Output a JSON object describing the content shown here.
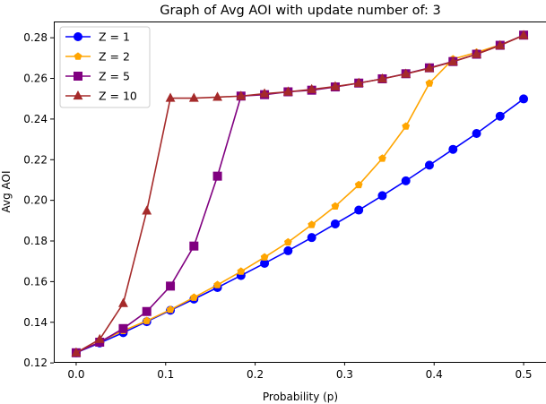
{
  "chart_data": {
    "type": "line",
    "title": "Graph of Avg AOI with update number of: 3",
    "xlabel": "Probability (p)",
    "ylabel": "Avg AOI",
    "xlim": [
      -0.025,
      0.525
    ],
    "ylim": [
      0.1205,
      0.288
    ],
    "xticks": [
      0.0,
      0.1,
      0.2,
      0.3,
      0.4,
      0.5
    ],
    "xtick_labels": [
      "0.0",
      "0.1",
      "0.2",
      "0.3",
      "0.4",
      "0.5"
    ],
    "yticks": [
      0.12,
      0.14,
      0.16,
      0.18,
      0.2,
      0.22,
      0.24,
      0.26,
      0.28
    ],
    "ytick_labels": [
      "0.12",
      "0.14",
      "0.16",
      "0.18",
      "0.20",
      "0.22",
      "0.24",
      "0.26",
      "0.28"
    ],
    "grid": false,
    "legend_position": "top-left",
    "x": [
      0.0,
      0.0263,
      0.0526,
      0.0789,
      0.1053,
      0.1316,
      0.1579,
      0.1842,
      0.2105,
      0.2368,
      0.2632,
      0.2895,
      0.3158,
      0.3421,
      0.3684,
      0.3947,
      0.4211,
      0.4474,
      0.4737,
      0.5
    ],
    "series": [
      {
        "name": "Z = 1",
        "color": "#0000ff",
        "marker": "circle",
        "values": [
          0.125,
          0.1298,
          0.1349,
          0.1403,
          0.1459,
          0.1514,
          0.1571,
          0.163,
          0.169,
          0.1752,
          0.1817,
          0.1884,
          0.1952,
          0.2023,
          0.2096,
          0.2173,
          0.2251,
          0.2329,
          0.2414,
          0.2499
        ]
      },
      {
        "name": "Z = 2",
        "color": "#ffa500",
        "marker": "pentagon",
        "values": [
          0.125,
          0.1304,
          0.1358,
          0.1407,
          0.1462,
          0.1522,
          0.1584,
          0.165,
          0.172,
          0.1794,
          0.188,
          0.1971,
          0.2076,
          0.2206,
          0.2364,
          0.2576,
          0.2695,
          0.2728,
          0.2765,
          0.2812
        ]
      },
      {
        "name": "Z = 5",
        "color": "#800080",
        "marker": "square",
        "values": [
          0.125,
          0.1302,
          0.1369,
          0.1453,
          0.1578,
          0.1775,
          0.2119,
          0.2513,
          0.252,
          0.2534,
          0.2542,
          0.2558,
          0.2577,
          0.2598,
          0.2623,
          0.2652,
          0.2683,
          0.2719,
          0.2763,
          0.2813
        ]
      },
      {
        "name": "Z = 10",
        "color": "#a52a2a",
        "marker": "triangle",
        "values": [
          0.125,
          0.1316,
          0.1493,
          0.1948,
          0.2503,
          0.2503,
          0.2508,
          0.2513,
          0.2525,
          0.2534,
          0.2546,
          0.256,
          0.2577,
          0.2598,
          0.2622,
          0.265,
          0.2682,
          0.2719,
          0.2762,
          0.2812
        ]
      }
    ]
  }
}
